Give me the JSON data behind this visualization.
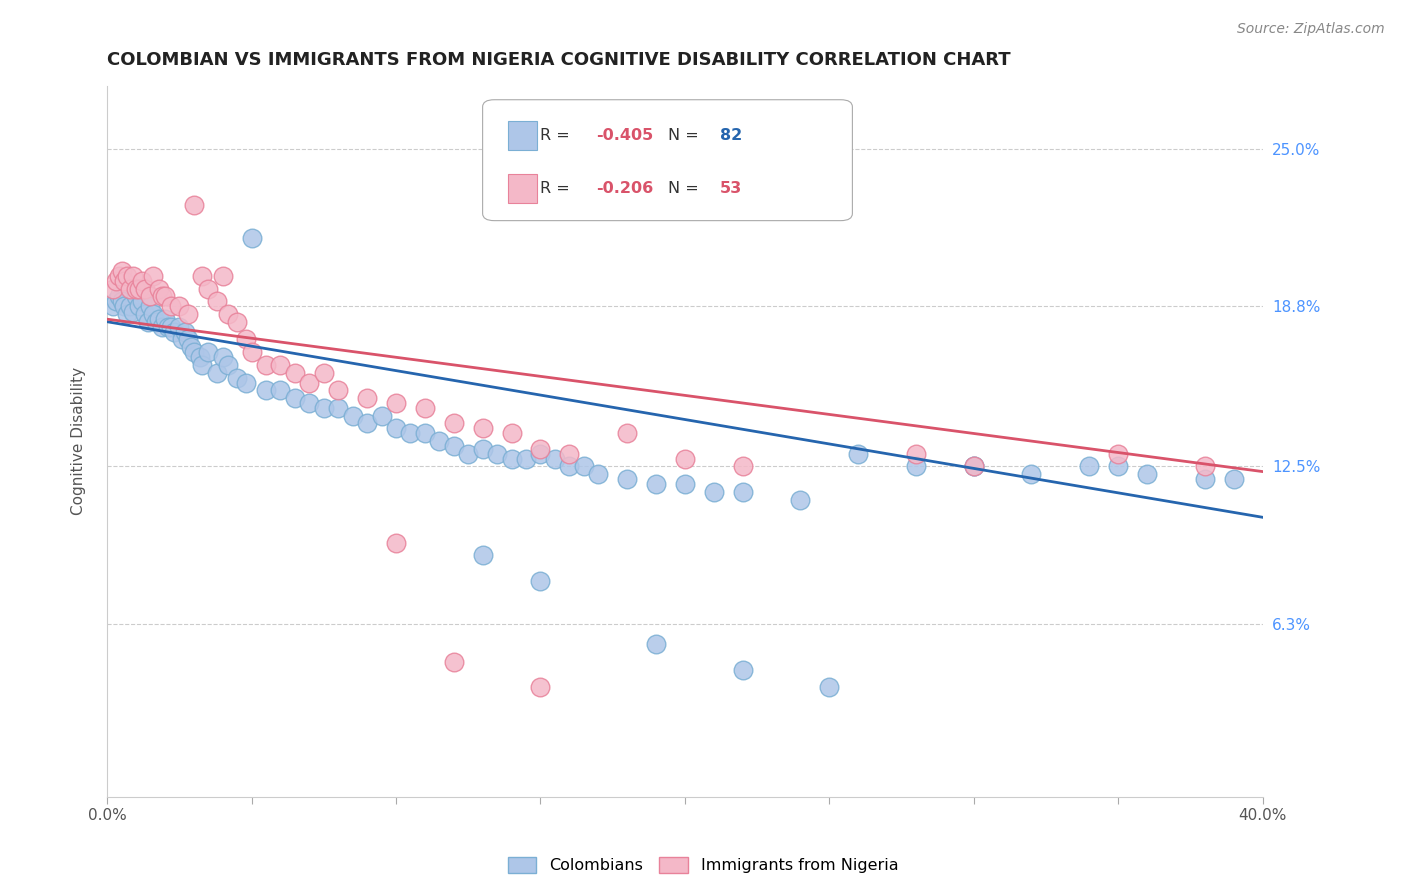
{
  "title": "COLOMBIAN VS IMMIGRANTS FROM NIGERIA COGNITIVE DISABILITY CORRELATION CHART",
  "source": "Source: ZipAtlas.com",
  "ylabel": "Cognitive Disability",
  "ytick_labels": [
    "25.0%",
    "18.8%",
    "12.5%",
    "6.3%"
  ],
  "ytick_values": [
    0.25,
    0.188,
    0.125,
    0.063
  ],
  "xlim": [
    0.0,
    0.4
  ],
  "ylim": [
    -0.005,
    0.275
  ],
  "colombians_color": "#aec6e8",
  "colombians_edge_color": "#7bafd4",
  "nigeria_color": "#f4b8c8",
  "nigeria_edge_color": "#e8829a",
  "regression_blue": "#2565ae",
  "regression_pink": "#d9536a",
  "legend_R_blue": "-0.405",
  "legend_N_blue": "82",
  "legend_R_pink": "-0.206",
  "legend_N_pink": "53",
  "title_fontsize": 13,
  "source_fontsize": 10,
  "label_fontsize": 11,
  "tick_fontsize": 11,
  "colombians_x": [
    0.002,
    0.003,
    0.004,
    0.005,
    0.006,
    0.007,
    0.008,
    0.009,
    0.01,
    0.011,
    0.012,
    0.013,
    0.014,
    0.015,
    0.016,
    0.017,
    0.018,
    0.019,
    0.02,
    0.021,
    0.022,
    0.023,
    0.025,
    0.026,
    0.027,
    0.028,
    0.029,
    0.03,
    0.032,
    0.033,
    0.035,
    0.038,
    0.04,
    0.042,
    0.045,
    0.048,
    0.05,
    0.055,
    0.06,
    0.065,
    0.07,
    0.075,
    0.08,
    0.085,
    0.09,
    0.095,
    0.1,
    0.105,
    0.11,
    0.115,
    0.12,
    0.125,
    0.13,
    0.135,
    0.14,
    0.145,
    0.15,
    0.155,
    0.16,
    0.165,
    0.17,
    0.18,
    0.19,
    0.2,
    0.21,
    0.22,
    0.24,
    0.26,
    0.28,
    0.3,
    0.32,
    0.34,
    0.35,
    0.36,
    0.38,
    0.39,
    0.13,
    0.15,
    0.19,
    0.22,
    0.25,
    0.3
  ],
  "colombians_y": [
    0.188,
    0.19,
    0.192,
    0.19,
    0.188,
    0.185,
    0.188,
    0.186,
    0.192,
    0.188,
    0.19,
    0.185,
    0.182,
    0.188,
    0.185,
    0.182,
    0.183,
    0.18,
    0.183,
    0.18,
    0.18,
    0.178,
    0.18,
    0.175,
    0.178,
    0.175,
    0.172,
    0.17,
    0.168,
    0.165,
    0.17,
    0.162,
    0.168,
    0.165,
    0.16,
    0.158,
    0.215,
    0.155,
    0.155,
    0.152,
    0.15,
    0.148,
    0.148,
    0.145,
    0.142,
    0.145,
    0.14,
    0.138,
    0.138,
    0.135,
    0.133,
    0.13,
    0.132,
    0.13,
    0.128,
    0.128,
    0.13,
    0.128,
    0.125,
    0.125,
    0.122,
    0.12,
    0.118,
    0.118,
    0.115,
    0.115,
    0.112,
    0.13,
    0.125,
    0.125,
    0.122,
    0.125,
    0.125,
    0.122,
    0.12,
    0.12,
    0.09,
    0.08,
    0.055,
    0.045,
    0.038,
    0.125
  ],
  "nigeria_x": [
    0.002,
    0.003,
    0.004,
    0.005,
    0.006,
    0.007,
    0.008,
    0.009,
    0.01,
    0.011,
    0.012,
    0.013,
    0.015,
    0.016,
    0.018,
    0.019,
    0.02,
    0.022,
    0.025,
    0.028,
    0.03,
    0.033,
    0.035,
    0.038,
    0.04,
    0.042,
    0.045,
    0.048,
    0.05,
    0.055,
    0.06,
    0.065,
    0.07,
    0.075,
    0.08,
    0.09,
    0.1,
    0.11,
    0.12,
    0.13,
    0.14,
    0.15,
    0.16,
    0.18,
    0.2,
    0.22,
    0.28,
    0.3,
    0.35,
    0.38,
    0.1,
    0.12,
    0.15
  ],
  "nigeria_y": [
    0.195,
    0.198,
    0.2,
    0.202,
    0.198,
    0.2,
    0.195,
    0.2,
    0.195,
    0.195,
    0.198,
    0.195,
    0.192,
    0.2,
    0.195,
    0.192,
    0.192,
    0.188,
    0.188,
    0.185,
    0.228,
    0.2,
    0.195,
    0.19,
    0.2,
    0.185,
    0.182,
    0.175,
    0.17,
    0.165,
    0.165,
    0.162,
    0.158,
    0.162,
    0.155,
    0.152,
    0.15,
    0.148,
    0.142,
    0.14,
    0.138,
    0.132,
    0.13,
    0.138,
    0.128,
    0.125,
    0.13,
    0.125,
    0.13,
    0.125,
    0.095,
    0.048,
    0.038
  ]
}
